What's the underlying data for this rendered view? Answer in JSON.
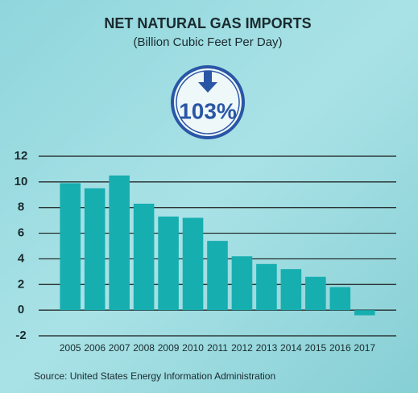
{
  "chart_data": {
    "type": "bar",
    "title": "NET NATURAL GAS IMPORTS",
    "subtitle": "(Billion Cubic Feet Per Day)",
    "annotation": "103%",
    "source": "Source: United States Energy Information Administration",
    "categories": [
      "2005",
      "2006",
      "2007",
      "2008",
      "2009",
      "2010",
      "2011",
      "2012",
      "2013",
      "2014",
      "2015",
      "2016",
      "2017"
    ],
    "values": [
      9.9,
      9.5,
      10.5,
      8.3,
      7.3,
      7.2,
      5.4,
      4.2,
      3.6,
      3.2,
      2.6,
      1.8,
      -0.4
    ],
    "color": "#17aeb0",
    "ylim": [
      -2,
      12
    ],
    "yticks": [
      -2,
      0,
      2,
      4,
      6,
      8,
      10,
      12
    ],
    "grid": true
  }
}
